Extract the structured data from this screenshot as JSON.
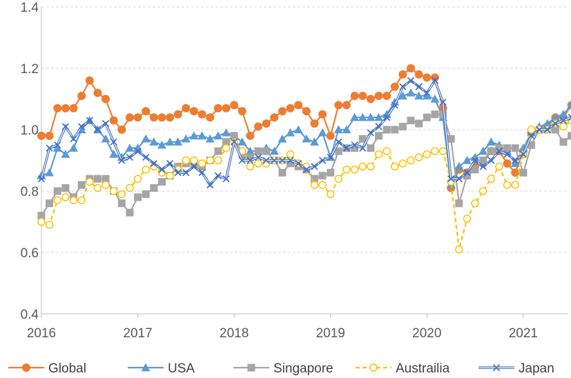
{
  "chart_data": {
    "type": "line",
    "title": "",
    "xlabel": "",
    "ylabel": "",
    "ylim": [
      0.4,
      1.4
    ],
    "yticks": [
      "0.4",
      "0.6",
      "0.8",
      "1.0",
      "1.2",
      "1.4"
    ],
    "xlim": [
      2016,
      2021.4667
    ],
    "xticks": [
      "2016",
      "2017",
      "2018",
      "2019",
      "2020",
      "2021"
    ],
    "grid": "horizontal dashed",
    "legend_position": "bottom",
    "series": [
      {
        "name": "Global",
        "color": "#ED7D31",
        "marker": "circle",
        "dash": false,
        "values": [
          0.98,
          0.98,
          1.07,
          1.07,
          1.07,
          1.11,
          1.16,
          1.12,
          1.1,
          1.03,
          1.0,
          1.04,
          1.04,
          1.06,
          1.04,
          1.04,
          1.04,
          1.05,
          1.07,
          1.06,
          1.05,
          1.04,
          1.07,
          1.07,
          1.08,
          1.06,
          0.98,
          1.01,
          1.02,
          1.04,
          1.06,
          1.07,
          1.08,
          1.06,
          1.02,
          1.05,
          0.98,
          1.08,
          1.08,
          1.11,
          1.11,
          1.1,
          1.11,
          1.11,
          1.14,
          1.18,
          1.2,
          1.18,
          1.17,
          1.17,
          1.07,
          0.81,
          0.87,
          0.86,
          0.88,
          0.89,
          0.93,
          0.93,
          0.89,
          0.86,
          0.93,
          0.99,
          1.0,
          1.01,
          1.04,
          1.04,
          1.08,
          1.1
        ]
      },
      {
        "name": "USA",
        "color": "#5B9BD5",
        "marker": "triangle",
        "dash": false,
        "values": [
          0.85,
          0.86,
          0.94,
          0.92,
          0.94,
          1.0,
          1.03,
          1.0,
          0.97,
          0.92,
          0.91,
          0.94,
          0.94,
          0.97,
          0.96,
          0.95,
          0.96,
          0.96,
          0.97,
          0.98,
          0.98,
          0.97,
          0.98,
          0.99,
          0.98,
          0.96,
          0.93,
          0.93,
          0.94,
          0.93,
          0.97,
          0.99,
          1.0,
          0.97,
          0.96,
          0.99,
          0.91,
          1.0,
          1.0,
          1.04,
          1.04,
          1.04,
          1.04,
          1.05,
          1.09,
          1.11,
          1.12,
          1.11,
          1.11,
          1.1,
          1.04,
          0.82,
          0.88,
          0.9,
          0.91,
          0.93,
          0.96,
          0.95,
          0.93,
          0.89,
          0.94,
          0.99,
          1.01,
          1.02,
          1.04,
          1.05,
          1.08,
          1.1
        ]
      },
      {
        "name": "Singapore",
        "color": "#A5A5A5",
        "marker": "square",
        "dash": false,
        "values": [
          0.72,
          0.76,
          0.8,
          0.81,
          0.78,
          0.82,
          0.84,
          0.84,
          0.84,
          0.8,
          0.76,
          0.73,
          0.78,
          0.79,
          0.81,
          0.83,
          0.85,
          0.88,
          0.89,
          0.89,
          0.88,
          0.9,
          0.93,
          0.96,
          0.98,
          0.92,
          0.91,
          0.93,
          0.93,
          0.9,
          0.86,
          0.89,
          0.88,
          0.87,
          0.84,
          0.85,
          0.86,
          0.93,
          0.94,
          0.94,
          0.97,
          0.94,
          0.98,
          1.0,
          1.0,
          1.01,
          1.03,
          1.02,
          1.04,
          1.05,
          1.05,
          0.97,
          0.76,
          0.85,
          0.87,
          0.9,
          0.93,
          0.94,
          0.94,
          0.94,
          0.86,
          0.95,
          1.0,
          1.0,
          1.0,
          0.96,
          0.98,
          1.0
        ]
      },
      {
        "name": "Austrailia",
        "color": "#FFC000",
        "marker": "open-circle",
        "dash": true,
        "values": [
          0.7,
          0.69,
          0.77,
          0.78,
          0.77,
          0.77,
          0.83,
          0.81,
          0.82,
          0.8,
          0.79,
          0.81,
          0.84,
          0.87,
          0.88,
          0.86,
          0.85,
          0.87,
          0.9,
          0.9,
          0.89,
          0.9,
          0.9,
          0.94,
          0.96,
          0.93,
          0.88,
          0.89,
          0.89,
          0.9,
          0.9,
          0.92,
          0.89,
          0.88,
          0.82,
          0.82,
          0.79,
          0.84,
          0.87,
          0.87,
          0.88,
          0.88,
          0.92,
          0.93,
          0.88,
          0.89,
          0.9,
          0.91,
          0.92,
          0.93,
          0.93,
          0.83,
          0.61,
          0.71,
          0.76,
          0.8,
          0.84,
          0.88,
          0.82,
          0.82,
          0.92,
          1.0,
          1.0,
          1.0,
          1.02,
          1.01,
          1.03,
          1.05
        ]
      },
      {
        "name": "Japan",
        "color": "#4472C4",
        "marker": "cross",
        "dash": false,
        "double_line": true,
        "values": [
          0.84,
          0.94,
          0.95,
          1.01,
          0.97,
          1.01,
          1.03,
          1.0,
          1.02,
          0.96,
          0.9,
          0.91,
          0.93,
          0.91,
          0.89,
          0.87,
          0.89,
          0.86,
          0.86,
          0.88,
          0.86,
          0.82,
          0.85,
          0.84,
          0.96,
          0.9,
          0.9,
          0.91,
          0.9,
          0.9,
          0.9,
          0.9,
          0.89,
          0.87,
          0.88,
          0.9,
          0.91,
          0.96,
          0.94,
          0.95,
          0.94,
          0.99,
          1.01,
          1.04,
          1.08,
          1.14,
          1.16,
          1.14,
          1.12,
          1.16,
          1.09,
          0.84,
          0.84,
          0.86,
          0.9,
          0.88,
          0.9,
          0.93,
          0.92,
          0.9,
          0.92,
          0.98,
          1.0,
          1.0,
          1.02,
          1.03,
          1.04,
          1.06
        ]
      }
    ]
  }
}
